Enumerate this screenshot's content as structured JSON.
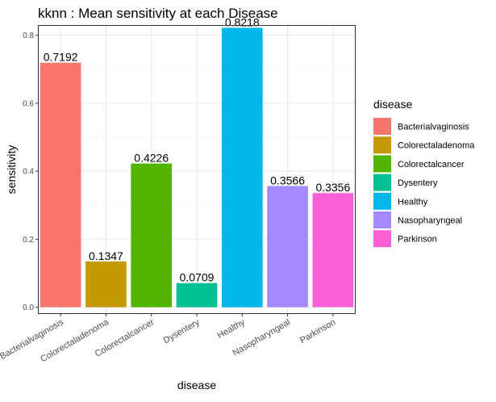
{
  "chart_data": {
    "type": "bar",
    "title": "kknn : Mean sensitivity at each Disease",
    "xlabel": "disease",
    "ylabel": "sensitivity",
    "ylim": [
      -0.02,
      0.83
    ],
    "yticks": [
      0.0,
      0.2,
      0.4,
      0.6,
      0.8
    ],
    "ytick_labels": [
      "0.0",
      "0.2",
      "0.4",
      "0.6",
      "0.8"
    ],
    "grid": true,
    "legend_position": "right",
    "legend_title": "disease",
    "categories": [
      "Bacterialvaginosis",
      "Colorectaladenoma",
      "Colorectalcancer",
      "Dysentery",
      "Healthy",
      "Nasopharyngeal",
      "Parkinson"
    ],
    "values": [
      0.7192,
      0.1347,
      0.4226,
      0.0709,
      0.8218,
      0.3566,
      0.3356
    ],
    "value_labels": [
      "0.7192",
      "0.1347",
      "0.4226",
      "0.0709",
      "0.8218",
      "0.3566",
      "0.3356"
    ],
    "colors": [
      "#F8766D",
      "#C49A00",
      "#53B400",
      "#00C094",
      "#00B6EB",
      "#A58AFF",
      "#FB61D7"
    ]
  }
}
